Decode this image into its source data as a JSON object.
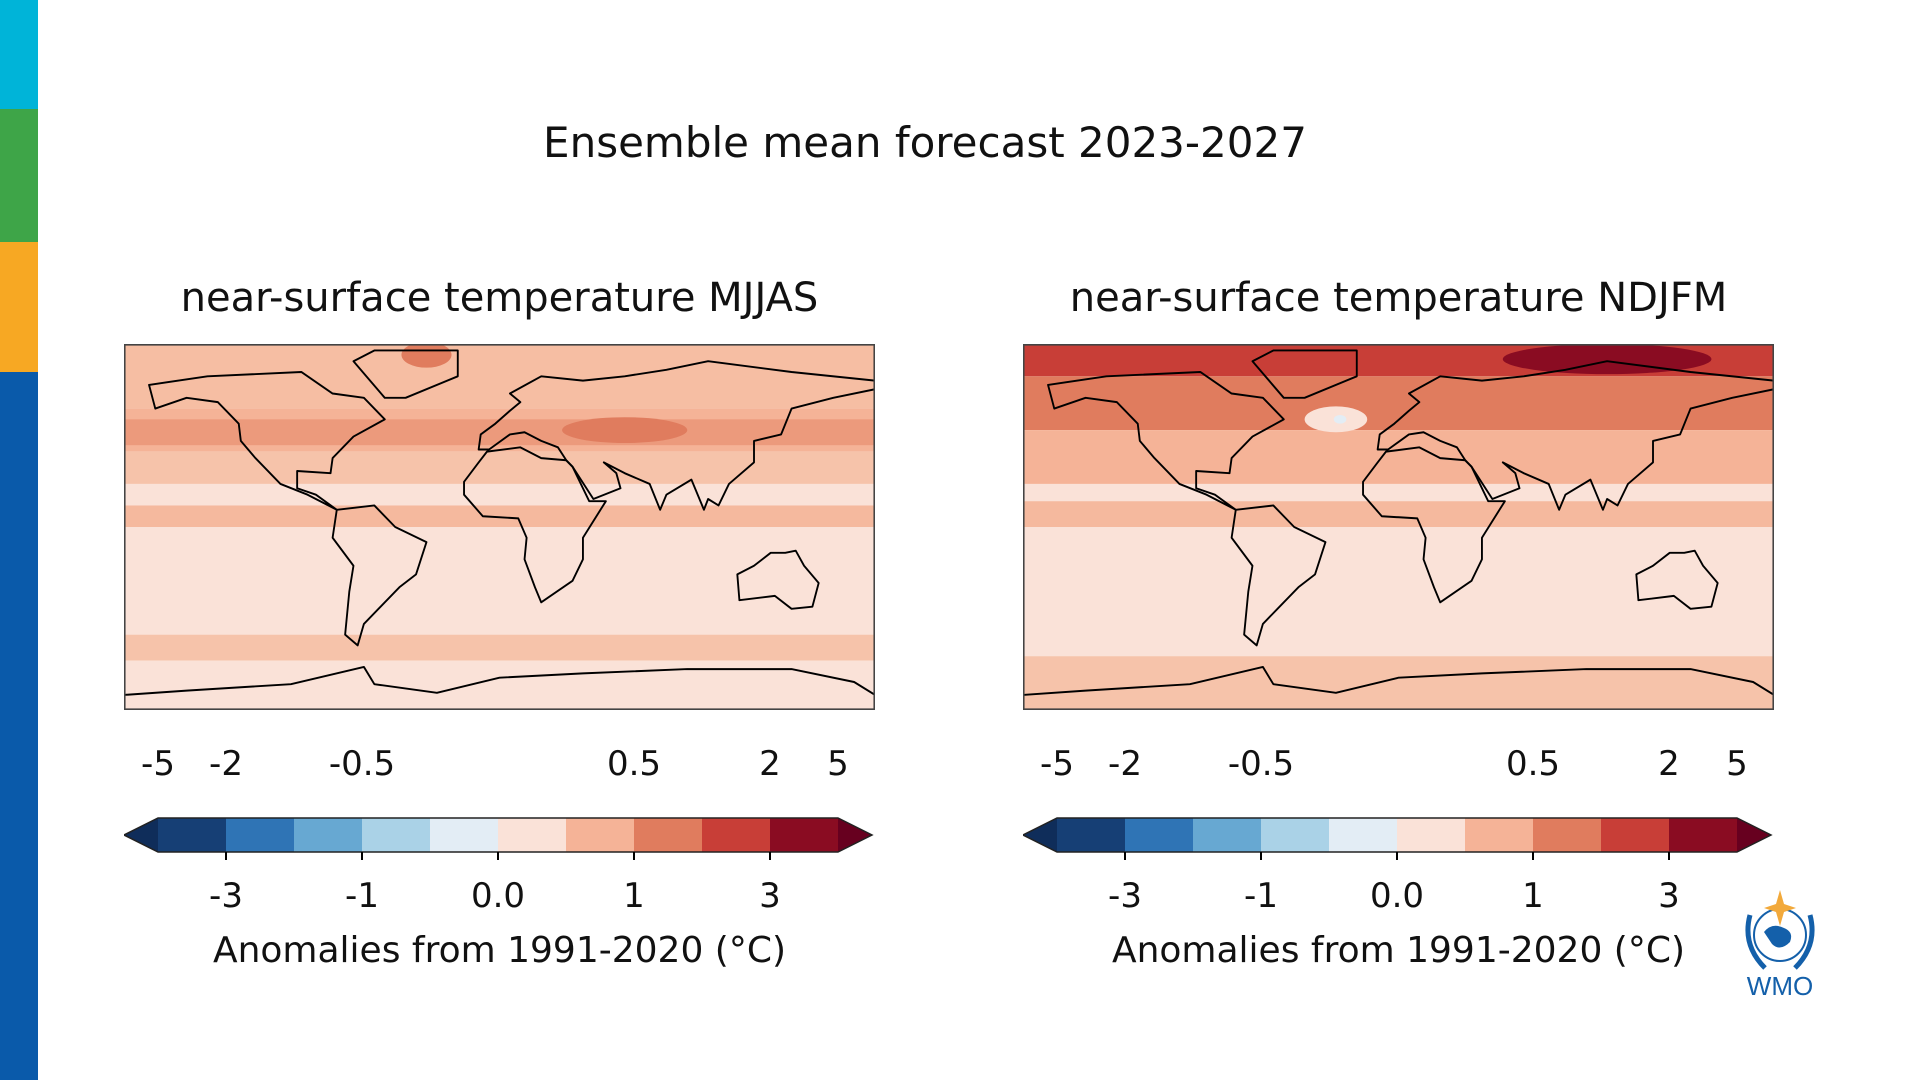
{
  "side_bar_colors": [
    "#00b4d8",
    "#3ea548",
    "#f7a823",
    "#0a5aaa"
  ],
  "title": "Ensemble mean forecast 2023-2027",
  "panels": [
    {
      "subtitle": "near-surface temperature MJJAS",
      "season": "MJJAS"
    },
    {
      "subtitle": "near-surface temperature NDJFM",
      "season": "NDJFM"
    }
  ],
  "colorbar": {
    "upper_ticks": [
      "-5",
      "-2",
      "-0.5",
      "0.5",
      "2",
      "5"
    ],
    "lower_ticks": [
      "-3",
      "-1",
      "0.0",
      "1",
      "3"
    ],
    "label": "Anomalies from 1991-2020 (°C)",
    "colors": [
      "#163f75",
      "#2f74b5",
      "#67a8d2",
      "#aad2e7",
      "#e3edf5",
      "#fae2d8",
      "#f5b397",
      "#e07c5e",
      "#c83e37",
      "#8a0c22"
    ],
    "under_color": "#0f2d5a",
    "over_color": "#67001f"
  },
  "logo": {
    "text": "WMO",
    "color": "#1460aa"
  }
}
